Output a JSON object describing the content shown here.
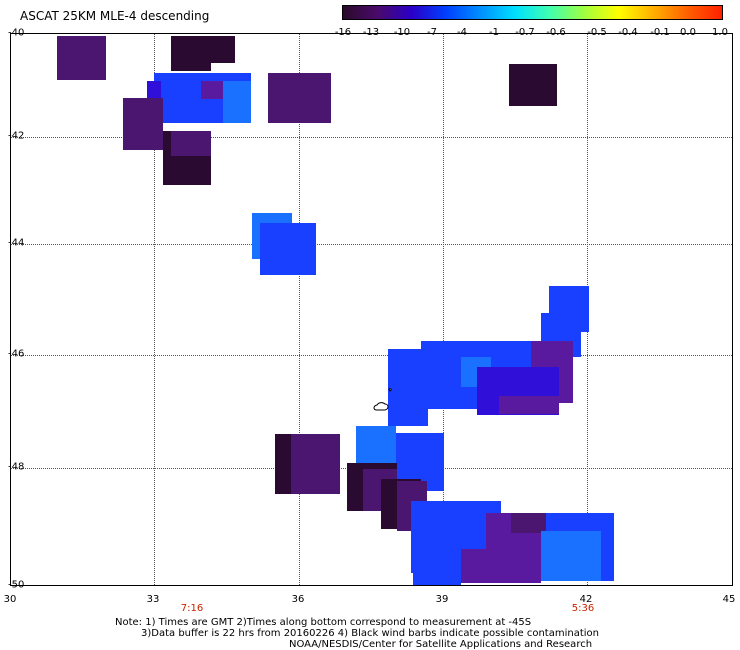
{
  "header": {
    "title": "ASCAT 25KM MLE-4 descending"
  },
  "colorbar": {
    "ticks": [
      "-16",
      "-13",
      "-10",
      "-7",
      "-4",
      "-1",
      "-0.7",
      "-0.6",
      "-0.5",
      "-0.4",
      "-0.1",
      "0.0",
      "1.0"
    ],
    "gradient_stops": [
      "#2a0a2a",
      "#4a0a6a",
      "#2a00c8",
      "#0040ff",
      "#0090ff",
      "#00e0ff",
      "#40ffb0",
      "#a0ff40",
      "#ffff00",
      "#ffb000",
      "#ff6000",
      "#ff2000"
    ]
  },
  "axes": {
    "y_labels": [
      "-40",
      "-42",
      "-44",
      "-46",
      "-48",
      "-50"
    ],
    "x_labels": [
      "30",
      "33",
      "36",
      "39",
      "42",
      "45"
    ]
  },
  "times": {
    "left": "7:16",
    "right": "5:36"
  },
  "notes": {
    "line1": "Note: 1) Times are GMT 2)Times along bottom correspond to measurement at -45S",
    "line2": "3)Data buffer is 22 hrs from 20160226 4) Black wind barbs indicate possible contamination",
    "line3": "NOAA/NESDIS/Center for Satellite Applications and Research"
  },
  "legend_colors": {
    "very_dark": "#2a0a30",
    "dark_purple": "#4a1670",
    "purple": "#5a1aa0",
    "blue_violet": "#3010d8",
    "blue": "#1a40ff",
    "light_blue": "#1a70ff",
    "sky": "#1a90ff"
  }
}
